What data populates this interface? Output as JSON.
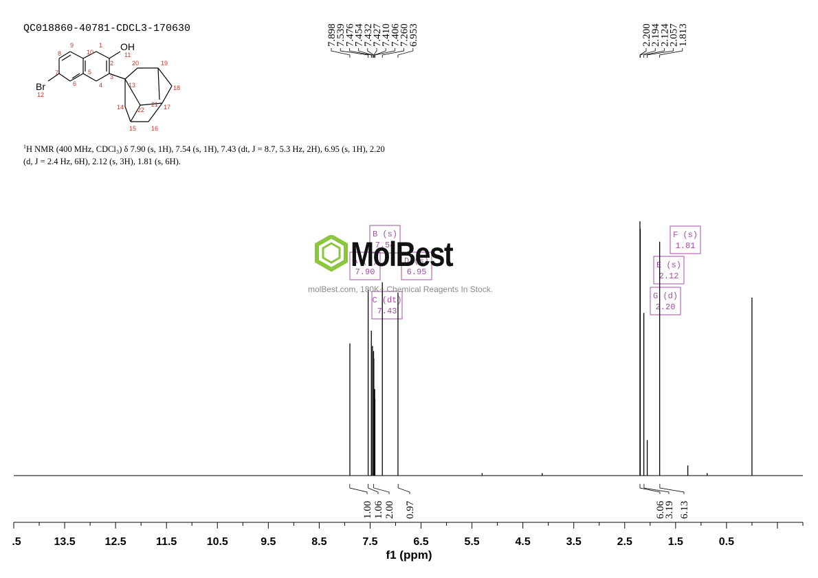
{
  "header": {
    "sample_id": "QC018860-40781-CDCL3-170630"
  },
  "structure": {
    "atoms": [
      "8",
      "9",
      "10",
      "1",
      "2",
      "OH",
      "11",
      "7",
      "6",
      "5",
      "4",
      "3",
      "13",
      "20",
      "19",
      "18",
      "21",
      "22",
      "17",
      "14",
      "15",
      "16",
      "Br",
      "12"
    ]
  },
  "description": {
    "line1": "H NMR (400 MHz, CDCl₃) δ 7.90 (s, 1H), 7.54 (s, 1H), 7.43 (dt, J = 8.7, 5.3 Hz, 2H), 6.95 (s, 1H), 2.20",
    "sup": "1",
    "line2": "(d, J = 2.4 Hz, 6H), 2.12 (s, 3H), 1.81 (s, 6H)."
  },
  "watermark": {
    "brand": "MolBest",
    "tagline": "molBest.com, 180K+ Chemical Reagents In Stock."
  },
  "chart_data": {
    "type": "line",
    "xlabel": "f1 (ppm)",
    "xlim": [
      14.5,
      -1.0
    ],
    "axis_reversed": true,
    "tick_labels": [
      ".5",
      "13.5",
      "12.5",
      "11.5",
      "10.5",
      "9.5",
      "8.5",
      "7.5",
      "6.5",
      "5.5",
      "4.5",
      "3.5",
      "2.5",
      "1.5",
      "0.5"
    ],
    "tick_values": [
      14.5,
      13.5,
      12.5,
      11.5,
      10.5,
      9.5,
      8.5,
      7.5,
      6.5,
      5.5,
      4.5,
      3.5,
      2.5,
      1.5,
      0.5
    ],
    "peak_list_left": [
      "7.898",
      "7.539",
      "7.476",
      "7.454",
      "7.432",
      "7.427",
      "7.410",
      "7.406",
      "7.260",
      "6.953"
    ],
    "peak_list_right": [
      "2.200",
      "2.194",
      "2.124",
      "2.057",
      "1.813"
    ],
    "peaks": [
      {
        "ppm": 7.898,
        "height": 0.52
      },
      {
        "ppm": 7.539,
        "height": 0.73
      },
      {
        "ppm": 7.476,
        "height": 0.57
      },
      {
        "ppm": 7.454,
        "height": 0.51
      },
      {
        "ppm": 7.432,
        "height": 0.49
      },
      {
        "ppm": 7.427,
        "height": 0.46
      },
      {
        "ppm": 7.41,
        "height": 0.34
      },
      {
        "ppm": 7.406,
        "height": 0.3
      },
      {
        "ppm": 7.26,
        "height": 0.76
      },
      {
        "ppm": 6.953,
        "height": 0.72
      },
      {
        "ppm": 5.3,
        "height": 0.01
      },
      {
        "ppm": 4.12,
        "height": 0.01
      },
      {
        "ppm": 2.2,
        "height": 1.0
      },
      {
        "ppm": 2.194,
        "height": 0.97
      },
      {
        "ppm": 2.124,
        "height": 0.64
      },
      {
        "ppm": 2.057,
        "height": 0.14
      },
      {
        "ppm": 1.813,
        "height": 0.92
      },
      {
        "ppm": 1.26,
        "height": 0.04
      },
      {
        "ppm": 0.88,
        "height": 0.01
      },
      {
        "ppm": 0.0,
        "height": 0.7
      }
    ],
    "multiplets": [
      {
        "letter": "A",
        "type": "(s)",
        "shift": "7.90"
      },
      {
        "letter": "B",
        "type": "(s)",
        "shift": "7.54"
      },
      {
        "letter": "C",
        "type": "(dt)",
        "shift": "7.43"
      },
      {
        "letter": "D",
        "type": "(s)",
        "shift": "6.95"
      },
      {
        "letter": "E",
        "type": "(s)",
        "shift": "2.12"
      },
      {
        "letter": "F",
        "type": "(s)",
        "shift": "1.81"
      },
      {
        "letter": "G",
        "type": "(d)",
        "shift": "2.20"
      }
    ],
    "integrals": [
      {
        "ppm": 7.9,
        "label": "1.00"
      },
      {
        "ppm": 7.54,
        "label": "1.06"
      },
      {
        "ppm": 7.43,
        "label": "2.00"
      },
      {
        "ppm": 6.95,
        "label": "0.97"
      },
      {
        "ppm": 2.2,
        "label": "6.06"
      },
      {
        "ppm": 2.12,
        "label": "3.19"
      },
      {
        "ppm": 1.81,
        "label": "6.13"
      }
    ]
  }
}
